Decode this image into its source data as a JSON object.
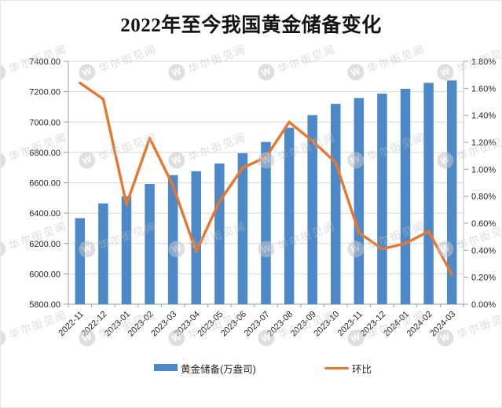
{
  "title": "2022年至今我国黄金储备变化",
  "watermark": {
    "text": "华尔街见闻",
    "logo_glyph": "W"
  },
  "legend": {
    "bar_label": "黄金储备(万盎司)",
    "line_label": "环比"
  },
  "colors": {
    "bar": "#4d89c8",
    "line": "#e8772e",
    "grid": "#d9d9d9",
    "axis_line": "#9c9c9c",
    "secondary_axis_line": "#c6c6c6",
    "tick": "#9c9c9c",
    "axis_text": "#262626",
    "title_text": "#141414",
    "watermark_gray": "#c5c5c5"
  },
  "chart_data": {
    "type": "bar+line combo",
    "title": "2022年至今我国黄金储备变化",
    "categories": [
      "2022-11",
      "2022-12",
      "2023-01",
      "2023-02",
      "2023-03",
      "2023-04",
      "2023-05",
      "2023-06",
      "2023-07",
      "2023-08",
      "2023-09",
      "2023-10",
      "2023-11",
      "2023-12",
      "2024-01",
      "2024-02",
      "2024-03"
    ],
    "series": [
      {
        "name": "黄金储备(万盎司)",
        "type": "bar",
        "axis": "left",
        "values": [
          6367,
          6464,
          6512,
          6592,
          6650,
          6676,
          6727,
          6795,
          6869,
          6962,
          7046,
          7120,
          7158,
          7187,
          7219,
          7258,
          7274
        ]
      },
      {
        "name": "环比",
        "type": "line",
        "axis": "right",
        "unit": "%",
        "values": [
          1.64,
          1.52,
          0.74,
          1.23,
          0.88,
          0.39,
          0.76,
          1.01,
          1.09,
          1.35,
          1.21,
          1.05,
          0.53,
          0.41,
          0.45,
          0.54,
          0.22
        ]
      }
    ],
    "left_axis": {
      "min": 5800,
      "max": 7400,
      "step": 200,
      "tick_labels": [
        "7400.00",
        "7200.00",
        "7000.00",
        "6800.00",
        "6600.00",
        "6400.00",
        "6200.00",
        "6000.00",
        "5800.00"
      ]
    },
    "right_axis": {
      "min": 0.0,
      "max": 1.8,
      "step": 0.2,
      "tick_labels": [
        "1.80%",
        "1.60%",
        "1.40%",
        "1.20%",
        "1.00%",
        "0.80%",
        "0.60%",
        "0.40%",
        "0.20%",
        "0.00%"
      ]
    },
    "grid": "horizontal major gridlines on",
    "legend_position": "bottom"
  }
}
